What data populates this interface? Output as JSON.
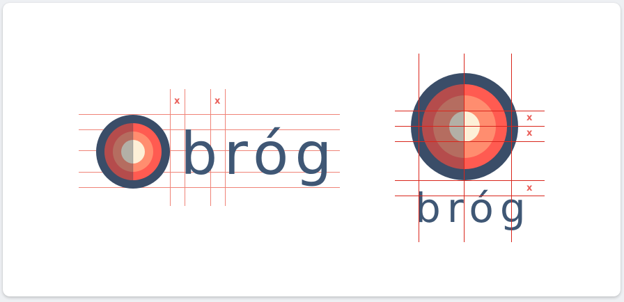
{
  "brand": {
    "wordmark": "bróg",
    "colors": {
      "navy": "#3a4d68",
      "red": "#ff5b51",
      "coral": "#ff8d6f",
      "peach": "#f8b48a",
      "cream": "#fdf0d7",
      "guide": "#ef8377",
      "marker": "#e9605a"
    }
  },
  "horizontal_lockup": {
    "wordmark": "bróg",
    "markers": [
      "x",
      "x"
    ]
  },
  "vertical_lockup": {
    "wordmark": "bróg",
    "markers": [
      "x",
      "x",
      "x"
    ]
  }
}
